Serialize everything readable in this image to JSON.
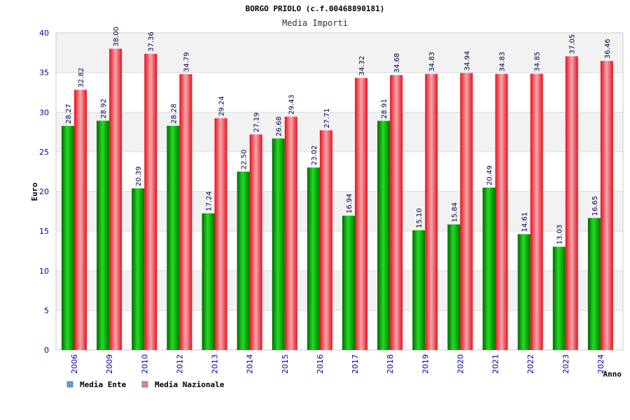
{
  "chart_data": {
    "type": "bar",
    "title": "BORGO PRIOLO (c.f.00468890181)",
    "subtitle": "Media Importi",
    "xlabel": "Anno",
    "ylabel": "Euro",
    "ylim": [
      0,
      40
    ],
    "yticks": [
      "0",
      "5",
      "10",
      "15",
      "20",
      "25",
      "30",
      "35",
      "40"
    ],
    "grid": true,
    "legend_position": "bottom-left",
    "categories": [
      "2006",
      "2009",
      "2010",
      "2012",
      "2013",
      "2014",
      "2015",
      "2016",
      "2017",
      "2018",
      "2019",
      "2020",
      "2021",
      "2022",
      "2023",
      "2024"
    ],
    "series": [
      {
        "name": "Media Ente",
        "color": "#00b000",
        "legend_color": "#5b9be8",
        "values": [
          28.27,
          28.92,
          20.39,
          28.28,
          17.24,
          22.5,
          26.68,
          23.02,
          16.94,
          28.91,
          15.1,
          15.84,
          20.49,
          14.61,
          13.03,
          16.65
        ],
        "labels": [
          "28.27",
          "28.92",
          "20.39",
          "28.28",
          "17.24",
          "22.50",
          "26.68",
          "23.02",
          "16.94",
          "28.91",
          "15.10",
          "15.84",
          "20.49",
          "14.61",
          "13.03",
          "16.65"
        ]
      },
      {
        "name": "Media Nazionale",
        "color": "#e01020",
        "legend_color": "#e07ea8",
        "values": [
          32.82,
          38.0,
          37.36,
          34.79,
          29.24,
          27.19,
          29.43,
          27.71,
          34.32,
          34.68,
          34.83,
          34.94,
          34.83,
          34.85,
          37.05,
          36.46
        ],
        "labels": [
          "32.82",
          "38.00",
          "37.36",
          "34.79",
          "29.24",
          "27.19",
          "29.43",
          "27.71",
          "34.32",
          "34.68",
          "34.83",
          "34.94",
          "34.83",
          "34.85",
          "37.05",
          "36.46"
        ]
      }
    ]
  }
}
